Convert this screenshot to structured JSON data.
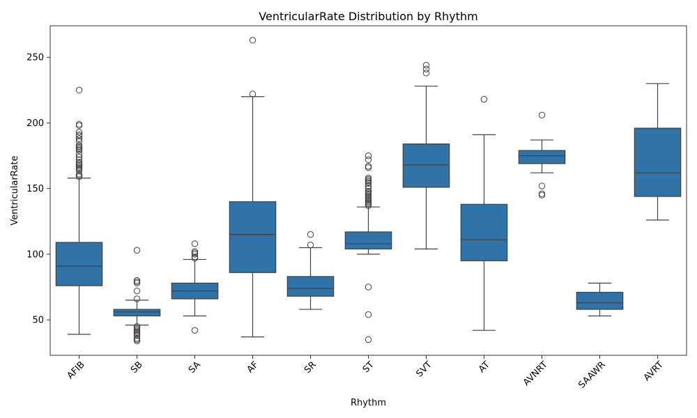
{
  "chart_data": {
    "type": "box",
    "title": "VentricularRate Distribution by Rhythm",
    "xlabel": "Rhythm",
    "ylabel": "VentricularRate",
    "ylim": [
      23,
      274
    ],
    "yticks": [
      50,
      100,
      150,
      200,
      250
    ],
    "grid": false,
    "legend": "none",
    "box_color": "#2f73a9",
    "line_color": "#404040",
    "categories": [
      "AFIB",
      "SB",
      "SA",
      "AF",
      "SR",
      "ST",
      "SVT",
      "AT",
      "AVNRT",
      "SAAWR",
      "AVRT"
    ],
    "boxes": [
      {
        "category": "AFIB",
        "whisker_low": 39,
        "q1": 76,
        "median": 91,
        "q3": 109,
        "whisker_high": 158,
        "outliers": [
          225,
          199,
          198,
          193,
          191,
          190,
          188,
          186,
          183,
          182,
          181,
          180,
          179,
          176,
          174,
          172,
          170,
          169,
          168,
          167,
          166,
          165,
          164,
          161,
          160,
          159
        ]
      },
      {
        "category": "SB",
        "whisker_low": 46,
        "q1": 53,
        "median": 56,
        "q3": 58,
        "whisker_high": 65,
        "outliers": [
          103,
          80,
          79,
          78,
          72,
          66,
          45,
          44,
          43,
          42,
          41,
          40,
          39,
          38,
          36,
          35,
          34
        ]
      },
      {
        "category": "SA",
        "whisker_low": 53,
        "q1": 66,
        "median": 72,
        "q3": 78,
        "whisker_high": 96,
        "outliers": [
          108,
          102,
          101,
          100,
          98,
          97,
          42
        ]
      },
      {
        "category": "AF",
        "whisker_low": 37,
        "q1": 86,
        "median": 115,
        "q3": 140,
        "whisker_high": 220,
        "outliers": [
          263,
          222
        ]
      },
      {
        "category": "SR",
        "whisker_low": 58,
        "q1": 68,
        "median": 74,
        "q3": 83,
        "whisker_high": 105,
        "outliers": [
          115,
          107
        ]
      },
      {
        "category": "ST",
        "whisker_low": 100,
        "q1": 104,
        "median": 108,
        "q3": 117,
        "whisker_high": 136,
        "outliers": [
          175,
          172,
          167,
          166,
          158,
          157,
          156,
          155,
          154,
          152,
          150,
          148,
          147,
          146,
          145,
          144,
          143,
          142,
          141,
          140,
          139,
          138,
          137,
          75,
          54,
          35
        ]
      },
      {
        "category": "SVT",
        "whisker_low": 104,
        "q1": 151,
        "median": 168,
        "q3": 184,
        "whisker_high": 228,
        "outliers": [
          244,
          241,
          238
        ]
      },
      {
        "category": "AT",
        "whisker_low": 42,
        "q1": 95,
        "median": 111,
        "q3": 138,
        "whisker_high": 191,
        "outliers": [
          218
        ]
      },
      {
        "category": "AVNRT",
        "whisker_low": 162,
        "q1": 169,
        "median": 175,
        "q3": 179,
        "whisker_high": 187,
        "outliers": [
          206,
          152,
          146,
          145
        ]
      },
      {
        "category": "SAAWR",
        "whisker_low": 53,
        "q1": 58,
        "median": 63,
        "q3": 71,
        "whisker_high": 78,
        "outliers": []
      },
      {
        "category": "AVRT",
        "whisker_low": 126,
        "q1": 144,
        "median": 162,
        "q3": 196,
        "whisker_high": 230,
        "outliers": []
      }
    ]
  }
}
